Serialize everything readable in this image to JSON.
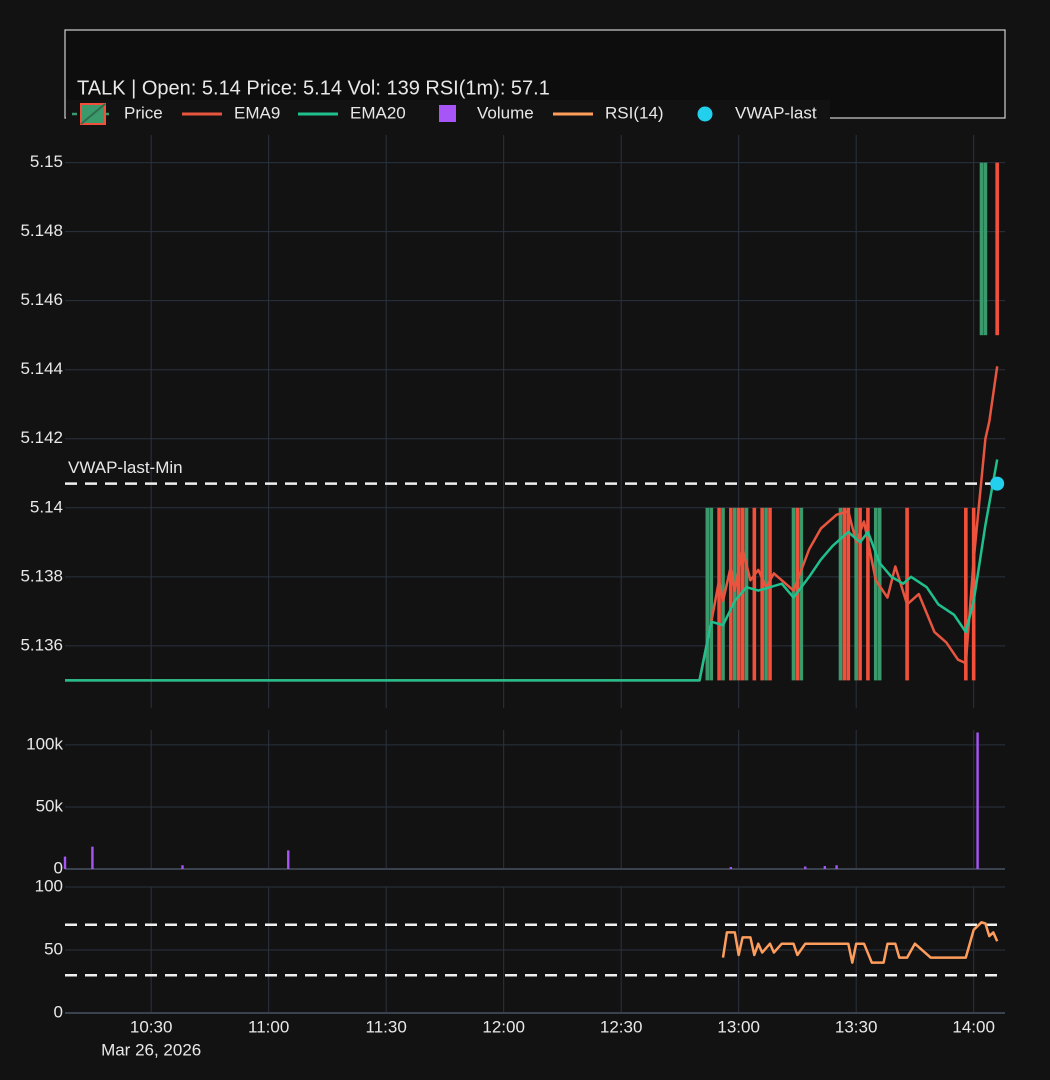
{
  "chart_data": [
    {
      "type": "candlestick",
      "title": "TALK | Open: 5.14   Price: 5.14   Vol: 139   RSI(1m): 57.1",
      "name": "Price",
      "increasing_color": "#3a9a6c",
      "decreasing_color": "#f2503b",
      "x": [
        "12:52",
        "12:53",
        "12:55",
        "12:56",
        "12:58",
        "12:59",
        "13:00",
        "13:01",
        "13:02",
        "13:04",
        "13:06",
        "13:07",
        "13:08",
        "13:14",
        "13:15",
        "13:16",
        "13:26",
        "13:27",
        "13:28",
        "13:30",
        "13:31",
        "13:33",
        "13:35",
        "13:36",
        "13:43",
        "13:58",
        "14:00",
        "14:02",
        "14:03",
        "14:06"
      ],
      "open": [
        5.135,
        5.135,
        5.14,
        5.135,
        5.14,
        5.135,
        5.14,
        5.14,
        5.135,
        5.14,
        5.14,
        5.135,
        5.14,
        5.135,
        5.14,
        5.135,
        5.135,
        5.14,
        5.14,
        5.135,
        5.14,
        5.14,
        5.135,
        5.135,
        5.14,
        5.14,
        5.14,
        5.145,
        5.145,
        5.15
      ],
      "close": [
        5.14,
        5.14,
        5.135,
        5.14,
        5.135,
        5.14,
        5.135,
        5.135,
        5.14,
        5.135,
        5.135,
        5.14,
        5.135,
        5.14,
        5.135,
        5.14,
        5.14,
        5.135,
        5.135,
        5.14,
        5.135,
        5.135,
        5.14,
        5.14,
        5.135,
        5.135,
        5.135,
        5.15,
        5.15,
        5.145
      ],
      "series": [
        {
          "name": "EMA9",
          "type": "line",
          "color": "#e8553f",
          "x": [
            "10:08",
            "12:50",
            "12:53",
            "12:55",
            "12:56",
            "12:58",
            "12:59",
            "13:01",
            "13:03",
            "13:05",
            "13:07",
            "13:09",
            "13:11",
            "13:14",
            "13:18",
            "13:21",
            "13:25",
            "13:28",
            "13:30",
            "13:32",
            "13:35",
            "13:38",
            "13:40",
            "13:43",
            "13:46",
            "13:50",
            "13:53",
            "13:56",
            "13:58",
            "14:00",
            "14:03",
            "14:04",
            "14:06"
          ],
          "values": [
            5.135,
            5.135,
            5.1367,
            5.1379,
            5.1373,
            5.1383,
            5.1376,
            5.1388,
            5.1379,
            5.1382,
            5.1377,
            5.1381,
            5.1379,
            5.1376,
            5.1388,
            5.1394,
            5.1398,
            5.1399,
            5.139,
            5.1396,
            5.1379,
            5.1374,
            5.1383,
            5.1372,
            5.1375,
            5.1364,
            5.1361,
            5.1356,
            5.1355,
            5.1385,
            5.142,
            5.1425,
            5.1441
          ]
        },
        {
          "name": "EMA20",
          "type": "line",
          "color": "#1fc08d",
          "x": [
            "10:08",
            "12:50",
            "12:53",
            "12:56",
            "12:59",
            "13:02",
            "13:05",
            "13:08",
            "13:11",
            "13:14",
            "13:18",
            "13:21",
            "13:24",
            "13:28",
            "13:31",
            "13:33",
            "13:36",
            "13:39",
            "13:42",
            "13:44",
            "13:48",
            "13:51",
            "13:55",
            "13:58",
            "14:00",
            "14:03",
            "14:06"
          ],
          "values": [
            5.135,
            5.135,
            5.1367,
            5.1366,
            5.1373,
            5.1377,
            5.1376,
            5.1377,
            5.1378,
            5.1374,
            5.138,
            5.1385,
            5.1389,
            5.1393,
            5.139,
            5.1393,
            5.1384,
            5.138,
            5.1378,
            5.138,
            5.1377,
            5.1372,
            5.1369,
            5.1364,
            5.1373,
            5.1395,
            5.1414
          ]
        },
        {
          "name": "VWAP-last",
          "type": "scatter",
          "color": "#22d0ee",
          "x": [
            "14:06"
          ],
          "values": [
            5.1407
          ]
        }
      ],
      "hline": {
        "value": 5.1407,
        "label": "VWAP-last-Min"
      },
      "ylim": [
        5.1342,
        5.1508
      ],
      "yticks": [
        5.136,
        5.138,
        5.14,
        5.142,
        5.144,
        5.146,
        5.148,
        5.15
      ],
      "grid": true
    },
    {
      "type": "bar",
      "name": "Volume",
      "color": "#a855f7",
      "x": [
        "10:08",
        "10:15",
        "10:38",
        "11:05",
        "12:58",
        "13:17",
        "13:22",
        "13:25",
        "14:01"
      ],
      "values": [
        10000,
        18000,
        3000,
        15000,
        1600,
        2000,
        2400,
        3000,
        110000
      ],
      "ylim": [
        0,
        112000
      ],
      "yticks": [
        0,
        {
          "value": 50000,
          "label": "50k"
        },
        {
          "value": 100000,
          "label": "100k"
        }
      ],
      "grid": true
    },
    {
      "type": "line",
      "series": [
        {
          "name": "RSI(14)",
          "color": "#ff9d5c",
          "x": [
            "12:56",
            "12:57",
            "12:59",
            "13:00",
            "13:01",
            "13:03",
            "13:04",
            "13:05",
            "13:06",
            "13:08",
            "13:09",
            "13:11",
            "13:14",
            "13:15",
            "13:17",
            "13:28",
            "13:29",
            "13:30",
            "13:32",
            "13:34",
            "13:37",
            "13:38",
            "13:40",
            "13:41",
            "13:43",
            "13:45",
            "13:49",
            "13:58",
            "14:00",
            "14:02",
            "14:03",
            "14:04",
            "14:05",
            "14:06"
          ],
          "values": [
            44,
            64,
            64,
            46,
            60,
            60,
            46,
            55,
            48,
            55,
            48,
            55,
            55,
            46,
            55,
            55,
            40,
            55,
            55,
            40,
            40,
            55,
            55,
            44,
            44,
            55,
            44,
            44,
            66,
            72,
            71,
            61,
            64,
            57
          ]
        }
      ],
      "hlines": [
        70,
        30
      ],
      "ylim": [
        0,
        100
      ],
      "yticks": [
        0,
        50,
        100
      ],
      "xlim": [
        "10:08",
        "14:08"
      ],
      "xticks": [
        "10:30",
        "11:00",
        "11:30",
        "12:00",
        "12:30",
        "13:00",
        "13:30",
        "14:00"
      ],
      "date_label": "Mar 26, 2026",
      "grid": true
    }
  ]
}
